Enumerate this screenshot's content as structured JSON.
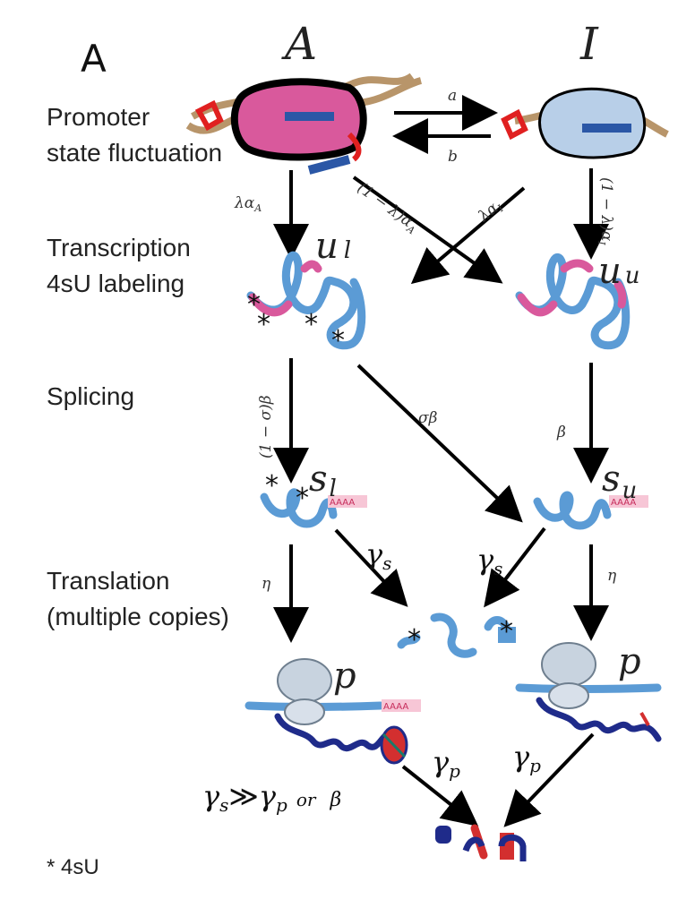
{
  "panel_label": "A",
  "states": {
    "active": "A",
    "inactive": "I"
  },
  "stages": {
    "promoter_line1": "Promoter",
    "promoter_line2": "state fluctuation",
    "transcription_line1": "Transcription",
    "transcription_line2": "4sU labeling",
    "splicing": "Splicing",
    "translation_line1": "Translation",
    "translation_line2": "(multiple copies)"
  },
  "rates": {
    "a": "a",
    "b": "b",
    "lambda_alpha_A": "λα",
    "lambda_alpha_A_sub": "A",
    "one_minus_lambda_alpha_A": "(1 − λ)α",
    "one_minus_lambda_alpha_A_sub": "A",
    "lambda_alpha_I": "λα",
    "lambda_alpha_I_sub": "I",
    "one_minus_lambda_alpha_I": "(1 − λ)α",
    "one_minus_lambda_alpha_I_sub": "I",
    "one_minus_sigma_beta": "(1 − σ)β",
    "sigma_beta": "σβ",
    "beta": "β",
    "gamma_s": "γ",
    "gamma_s_sub": "s",
    "eta": "η",
    "gamma_p": "γ",
    "gamma_p_sub": "p"
  },
  "species": {
    "ul": "u",
    "ul_sub": "l",
    "uu": "u",
    "uu_sub": "u",
    "sl": "s",
    "sl_sub": "l",
    "su": "s",
    "su_sub": "u",
    "p_left": "p",
    "p_right": "p"
  },
  "polya_tail": "AAAA",
  "condition": {
    "gamma_s": "γ",
    "gamma_s_sub": "s",
    "much_greater": "≫",
    "gamma_p": "γ",
    "gamma_p_sub": "p",
    "or_text": "or",
    "beta": "β"
  },
  "label_marker": "*",
  "footnote": "* 4sU",
  "colors": {
    "active_promoter": "#d9599c",
    "inactive_promoter": "#b8cfe8",
    "mrna": "#5b9bd5",
    "protein": "#1f2b8a",
    "degraded": "#e03030"
  }
}
